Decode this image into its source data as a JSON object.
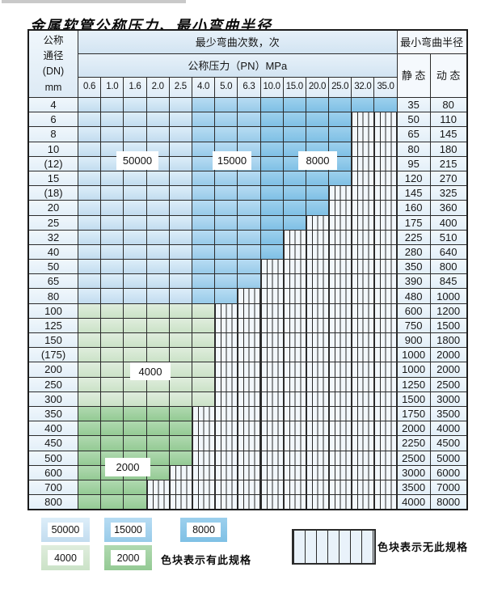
{
  "title": "金属软管公称压力、最小弯曲半径",
  "table": {
    "header": {
      "dn_label_lines": [
        "公称",
        "通径",
        "(DN)",
        "mm"
      ],
      "bend_cycles_label": "最少弯曲次数，次",
      "pressure_label": "公称压力（PN）MPa",
      "bend_radius_label": "最小弯曲半径",
      "static_label": "静 态",
      "dynamic_label": "动 态",
      "pressure_columns": [
        "0.6",
        "1.0",
        "1.6",
        "2.0",
        "2.5",
        "4.0",
        "5.0",
        "6.3",
        "10.0",
        "15.0",
        "20.0",
        "25.0",
        "32.0",
        "35.0"
      ]
    },
    "rows": [
      {
        "dn": "4",
        "max_pn": "35.0",
        "scheme": "blue",
        "static": "35",
        "dynamic": "80"
      },
      {
        "dn": "6",
        "max_pn": "25.0",
        "scheme": "blue",
        "static": "50",
        "dynamic": "110"
      },
      {
        "dn": "8",
        "max_pn": "25.0",
        "scheme": "blue",
        "static": "65",
        "dynamic": "145"
      },
      {
        "dn": "10",
        "max_pn": "25.0",
        "scheme": "blue",
        "static": "80",
        "dynamic": "180"
      },
      {
        "dn": "(12)",
        "max_pn": "25.0",
        "scheme": "blue",
        "static": "95",
        "dynamic": "215"
      },
      {
        "dn": "15",
        "max_pn": "25.0",
        "scheme": "blue",
        "static": "120",
        "dynamic": "270"
      },
      {
        "dn": "(18)",
        "max_pn": "20.0",
        "scheme": "blue",
        "static": "145",
        "dynamic": "325"
      },
      {
        "dn": "20",
        "max_pn": "20.0",
        "scheme": "blue",
        "static": "160",
        "dynamic": "360"
      },
      {
        "dn": "25",
        "max_pn": "15.0",
        "scheme": "blue",
        "static": "175",
        "dynamic": "400"
      },
      {
        "dn": "32",
        "max_pn": "10.0",
        "scheme": "blue",
        "static": "225",
        "dynamic": "510"
      },
      {
        "dn": "40",
        "max_pn": "10.0",
        "scheme": "blue",
        "static": "280",
        "dynamic": "640"
      },
      {
        "dn": "50",
        "max_pn": "6.3",
        "scheme": "blue",
        "static": "350",
        "dynamic": "800"
      },
      {
        "dn": "65",
        "max_pn": "6.3",
        "scheme": "blue",
        "static": "390",
        "dynamic": "845"
      },
      {
        "dn": "80",
        "max_pn": "5.0",
        "scheme": "blue",
        "static": "480",
        "dynamic": "1000"
      },
      {
        "dn": "100",
        "max_pn": "4.0",
        "scheme": "4000",
        "static": "600",
        "dynamic": "1200"
      },
      {
        "dn": "125",
        "max_pn": "4.0",
        "scheme": "4000",
        "static": "750",
        "dynamic": "1500"
      },
      {
        "dn": "150",
        "max_pn": "4.0",
        "scheme": "4000",
        "static": "900",
        "dynamic": "1800"
      },
      {
        "dn": "(175)",
        "max_pn": "4.0",
        "scheme": "4000",
        "static": "1000",
        "dynamic": "2000"
      },
      {
        "dn": "200",
        "max_pn": "4.0",
        "scheme": "4000",
        "static": "1000",
        "dynamic": "2000"
      },
      {
        "dn": "250",
        "max_pn": "4.0",
        "scheme": "4000",
        "static": "1250",
        "dynamic": "2500"
      },
      {
        "dn": "300",
        "max_pn": "4.0",
        "scheme": "4000",
        "static": "1500",
        "dynamic": "3000"
      },
      {
        "dn": "350",
        "max_pn": "2.5",
        "scheme": "2000",
        "static": "1750",
        "dynamic": "3500"
      },
      {
        "dn": "400",
        "max_pn": "2.5",
        "scheme": "2000",
        "static": "2000",
        "dynamic": "4000"
      },
      {
        "dn": "450",
        "max_pn": "2.5",
        "scheme": "2000",
        "static": "2250",
        "dynamic": "4500"
      },
      {
        "dn": "500",
        "max_pn": "2.5",
        "scheme": "2000",
        "static": "2500",
        "dynamic": "5000"
      },
      {
        "dn": "600",
        "max_pn": "2.0",
        "scheme": "2000",
        "static": "3000",
        "dynamic": "6000"
      },
      {
        "dn": "700",
        "max_pn": "1.6",
        "scheme": "2000",
        "static": "3500",
        "dynamic": "7000"
      },
      {
        "dn": "800",
        "max_pn": "1.6",
        "scheme": "2000",
        "static": "4000",
        "dynamic": "8000"
      }
    ],
    "cycle_bands": [
      {
        "cycles": "50000",
        "pn_columns": [
          "0.6",
          "1.0",
          "1.6",
          "2.0",
          "2.5"
        ]
      },
      {
        "cycles": "15000",
        "pn_columns": [
          "4.0",
          "5.0",
          "6.3"
        ]
      },
      {
        "cycles": "8000",
        "pn_columns": [
          "10.0",
          "15.0",
          "20.0",
          "25.0",
          "32.0",
          "35.0"
        ]
      },
      {
        "cycles": "4000",
        "dn_rows": "100-300"
      },
      {
        "cycles": "2000",
        "dn_rows": "350-800"
      }
    ]
  },
  "annotations": [
    "50000",
    "15000",
    "8000",
    "4000",
    "2000"
  ],
  "legend": {
    "items": [
      {
        "cycles": "50000"
      },
      {
        "cycles": "15000"
      },
      {
        "cycles": "8000"
      },
      {
        "cycles": "4000"
      },
      {
        "cycles": "2000"
      }
    ],
    "present_note": "色块表示有此规格",
    "absent_note": "色块表示无此规格"
  },
  "colors": {
    "cycles_50000": "#cfe4f3",
    "cycles_15000": "#a9d3ec",
    "cycles_8000": "#8fc8e8",
    "cycles_4000": "#d6e8d3",
    "cycles_2000": "#a3d2a3",
    "no_spec_hatch_bg": "#f2f7fb",
    "grid_line": "#2b2b2b",
    "label_cell_bg": "#e9f2fa"
  }
}
